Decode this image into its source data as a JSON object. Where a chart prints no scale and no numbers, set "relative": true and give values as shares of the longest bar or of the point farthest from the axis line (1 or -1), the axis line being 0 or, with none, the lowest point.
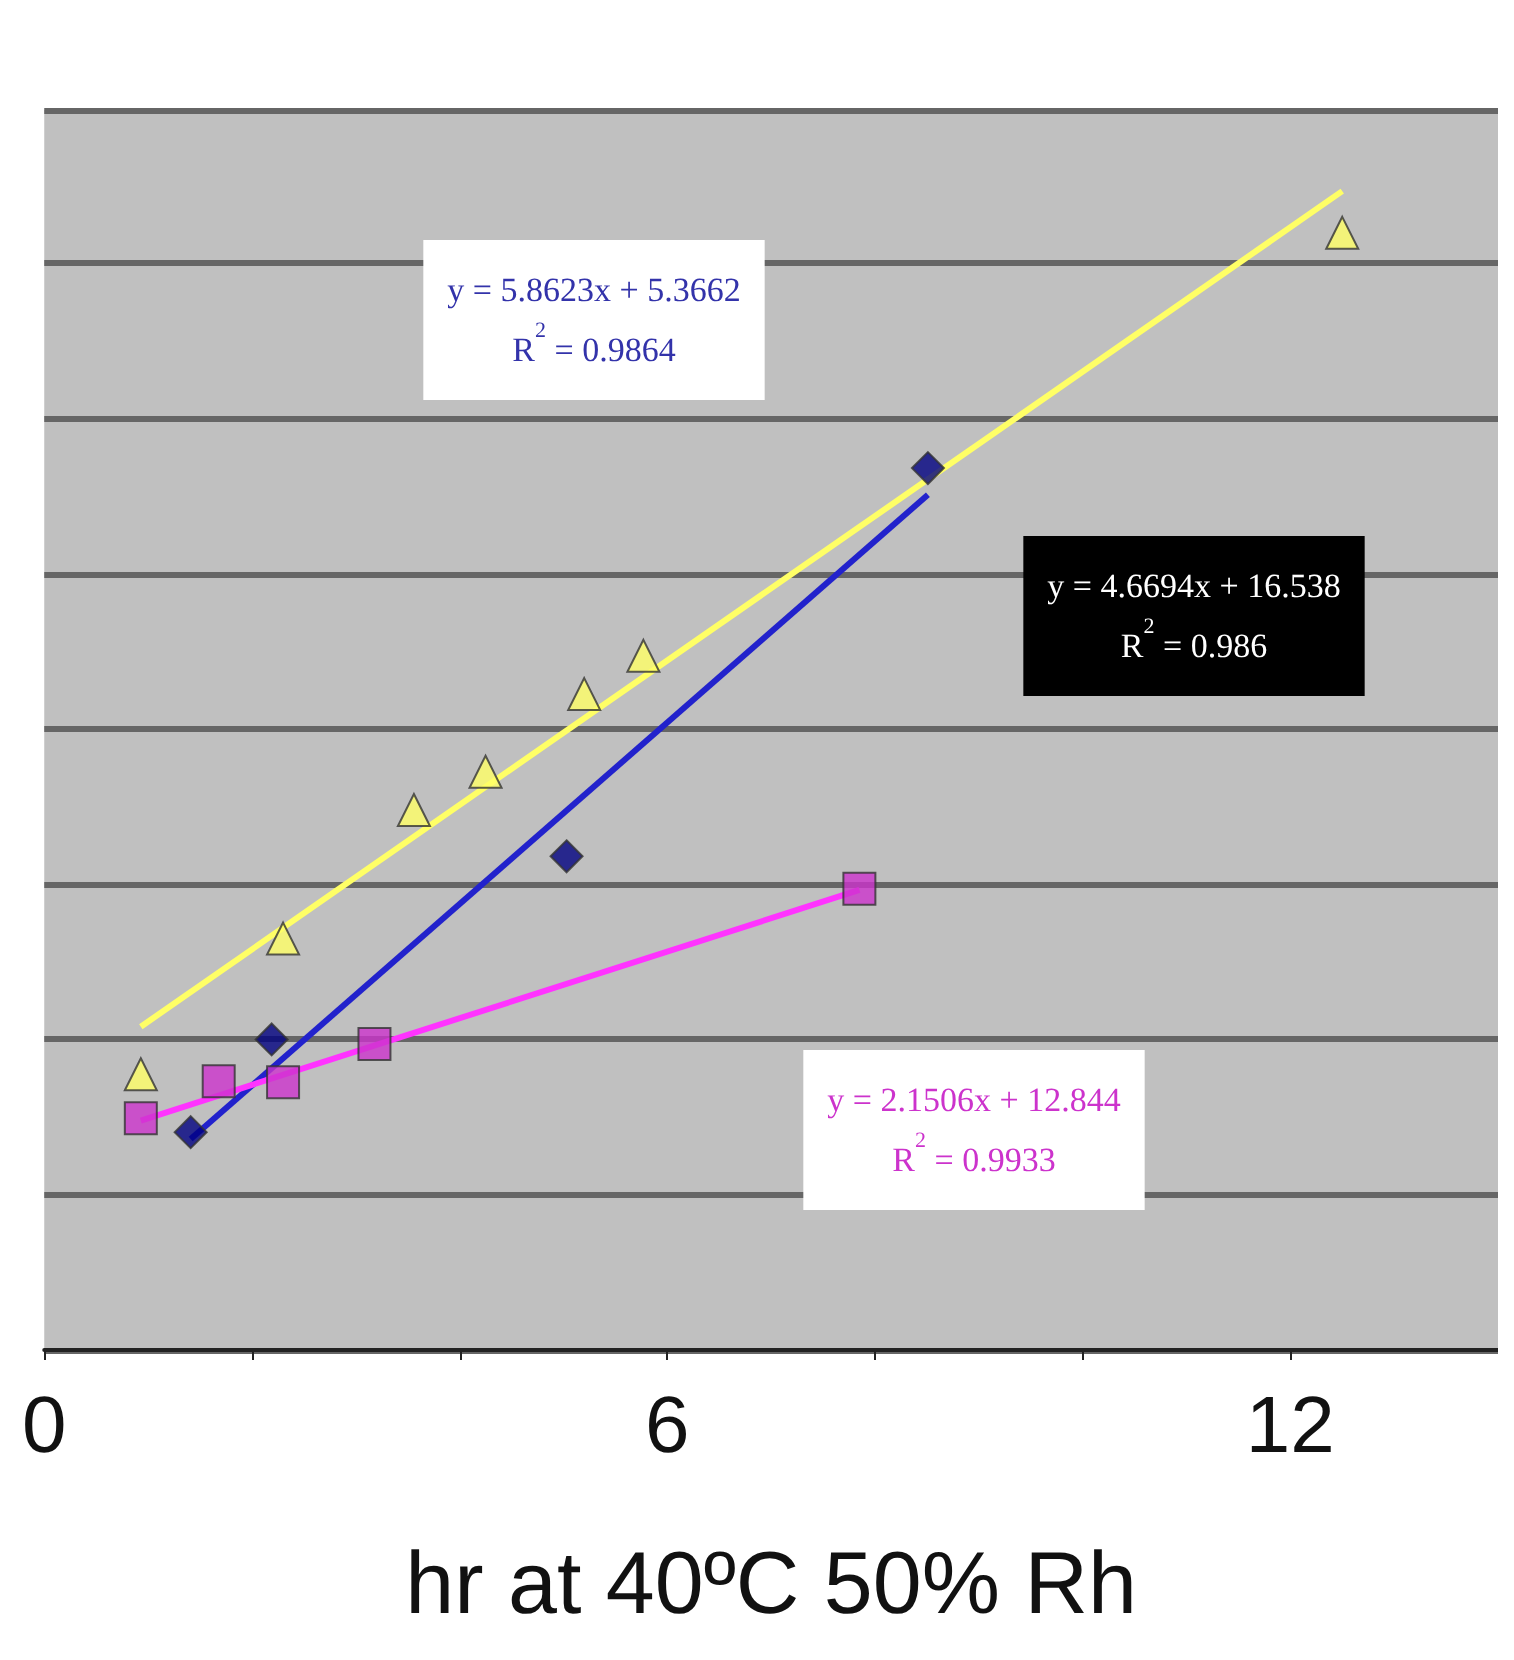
{
  "chart_data": {
    "type": "scatter",
    "xlabel": "hr at 40ºC 50% Rh",
    "relative": true,
    "xlim": [
      0,
      14
    ],
    "xticks": [
      0,
      {
        "value": 2,
        "label": null
      },
      {
        "value": 4,
        "label": null
      },
      6,
      {
        "value": 8,
        "label": null
      },
      {
        "value": 10,
        "label": null
      },
      12
    ],
    "tick_labels": "x",
    "grid": "y",
    "series": [
      {
        "color": "#ffff66",
        "marker": "triangle",
        "x": [
          0.93,
          2.3,
          3.56,
          4.25,
          5.2,
          5.77,
          12.5
        ],
        "values": [
          0.238,
          0.355,
          0.466,
          0.499,
          0.566,
          0.599,
          0.964
        ]
      },
      {
        "color": "#000080",
        "marker": "diamond",
        "x": [
          1.41,
          2.19,
          5.03,
          8.51
        ],
        "values": [
          0.188,
          0.268,
          0.426,
          0.761
        ]
      },
      {
        "color": "#cc33cc",
        "marker": "square",
        "x": [
          0.93,
          1.68,
          2.3,
          3.18,
          7.85
        ],
        "values": [
          0.2,
          0.232,
          0.231,
          0.264,
          0.398
        ]
      },
      {
        "type": "line",
        "color": "#ffff66",
        "marker": "none",
        "x": [
          0.93,
          12.5
        ],
        "values": [
          0.279,
          1
        ]
      },
      {
        "type": "line",
        "color": "#2222cc",
        "marker": "none",
        "x": [
          1.41,
          8.51
        ],
        "values": [
          0.182,
          0.738
        ]
      },
      {
        "type": "line",
        "color": "#ff33ff",
        "marker": "none",
        "x": [
          0.93,
          7.85
        ],
        "values": [
          0.198,
          0.397
        ]
      }
    ],
    "annotations": [
      "y = 5.8623x + 5.3662\nR$^{2}$ = 0.9864",
      "y = 4.6694x + 16.538\nR$^{2}$ = 0.986",
      "y = 2.1506x + 12.844\nR$^{2}$ = 0.9933"
    ]
  }
}
